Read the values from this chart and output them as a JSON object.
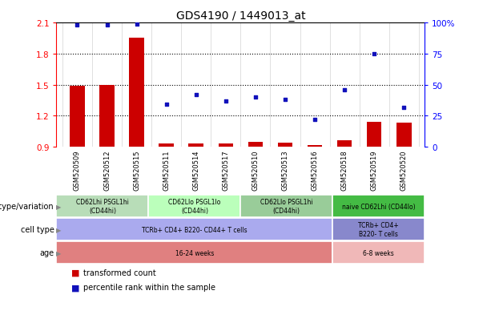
{
  "title": "GDS4190 / 1449013_at",
  "samples": [
    "GSM520509",
    "GSM520512",
    "GSM520515",
    "GSM520511",
    "GSM520514",
    "GSM520517",
    "GSM520510",
    "GSM520513",
    "GSM520516",
    "GSM520518",
    "GSM520519",
    "GSM520520"
  ],
  "transformed_count": [
    1.49,
    1.5,
    1.95,
    0.93,
    0.93,
    0.93,
    0.95,
    0.94,
    0.92,
    0.96,
    1.14,
    1.13
  ],
  "percentile_rank": [
    98,
    98,
    99,
    34,
    42,
    37,
    40,
    38,
    22,
    46,
    75,
    32
  ],
  "ylim_left": [
    0.9,
    2.1
  ],
  "ylim_right": [
    0,
    100
  ],
  "yticks_left": [
    0.9,
    1.2,
    1.5,
    1.8,
    2.1
  ],
  "yticks_right": [
    0,
    25,
    50,
    75,
    100
  ],
  "bar_color": "#cc0000",
  "dot_color": "#1111bb",
  "dot_size": 10,
  "annotation_rows": [
    {
      "label": "genotype/variation",
      "segments": [
        {
          "text": "CD62Lhi PSGL1hi\n(CD44hi)",
          "start": 0,
          "end": 3,
          "color": "#b8ddb8"
        },
        {
          "text": "CD62Llo PSGL1lo\n(CD44hi)",
          "start": 3,
          "end": 6,
          "color": "#bbffbb"
        },
        {
          "text": "CD62Llo PSGL1hi\n(CD44hi)",
          "start": 6,
          "end": 9,
          "color": "#99cc99"
        },
        {
          "text": "naive CD62Lhi (CD44lo)",
          "start": 9,
          "end": 12,
          "color": "#44bb44"
        }
      ]
    },
    {
      "label": "cell type",
      "segments": [
        {
          "text": "TCRb+ CD4+ B220- CD44+ T cells",
          "start": 0,
          "end": 9,
          "color": "#aaaaee"
        },
        {
          "text": "TCRb+ CD4+\nB220- T cells",
          "start": 9,
          "end": 12,
          "color": "#8888cc"
        }
      ]
    },
    {
      "label": "age",
      "segments": [
        {
          "text": "16-24 weeks",
          "start": 0,
          "end": 9,
          "color": "#e08080"
        },
        {
          "text": "6-8 weeks",
          "start": 9,
          "end": 12,
          "color": "#f0b8b8"
        }
      ]
    }
  ],
  "legend_items": [
    {
      "label": "transformed count",
      "color": "#cc0000"
    },
    {
      "label": "percentile rank within the sample",
      "color": "#1111bb"
    }
  ],
  "bar_width": 0.5,
  "bar_bottom": 0.9
}
